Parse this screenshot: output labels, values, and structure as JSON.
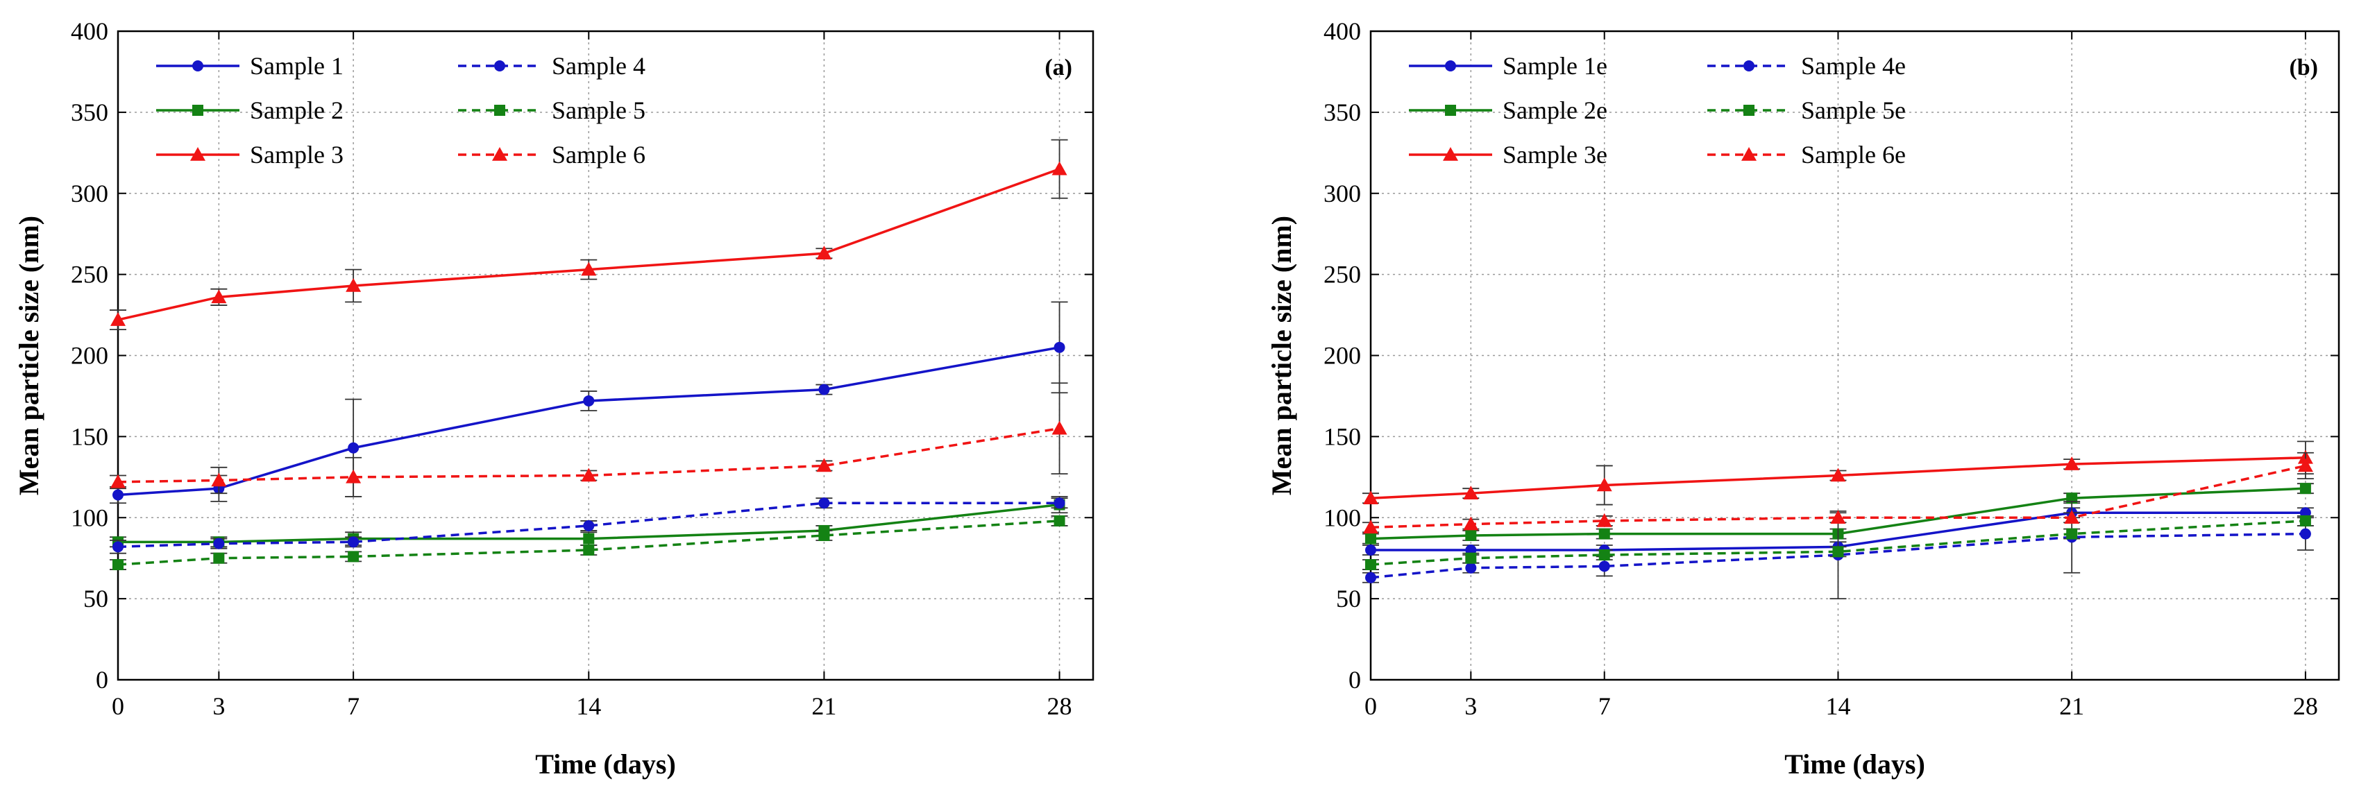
{
  "chart_data": [
    {
      "type": "line",
      "panel_label": "(a)",
      "xlabel": "Time (days)",
      "ylabel": "Mean particle size (nm)",
      "xlim": [
        0,
        29
      ],
      "ylim": [
        0,
        400
      ],
      "x_ticks": [
        0,
        3,
        7,
        14,
        21,
        28
      ],
      "y_ticks": [
        0,
        50,
        100,
        150,
        200,
        250,
        300,
        350,
        400
      ],
      "grid": true,
      "legend_position": "top-left",
      "x": [
        0,
        3,
        7,
        14,
        21,
        28
      ],
      "series": [
        {
          "name": "Sample 1",
          "color": "#1414c8",
          "marker": "circle",
          "dash": "solid",
          "values": [
            114,
            118,
            143,
            172,
            179,
            205
          ],
          "errors": [
            5,
            8,
            30,
            6,
            3,
            28
          ]
        },
        {
          "name": "Sample 2",
          "color": "#148214",
          "marker": "square",
          "dash": "solid",
          "values": [
            85,
            85,
            87,
            87,
            92,
            108
          ],
          "errors": [
            3,
            3,
            4,
            4,
            3,
            5
          ]
        },
        {
          "name": "Sample 3",
          "color": "#f01414",
          "marker": "triangle",
          "dash": "solid",
          "values": [
            222,
            236,
            243,
            253,
            263,
            315
          ],
          "errors": [
            6,
            5,
            10,
            6,
            3,
            18
          ]
        },
        {
          "name": "Sample 4",
          "color": "#1414c8",
          "marker": "circle",
          "dash": "dashed",
          "values": [
            82,
            84,
            85,
            95,
            109,
            109
          ],
          "errors": [
            4,
            3,
            3,
            3,
            3,
            3
          ]
        },
        {
          "name": "Sample 5",
          "color": "#148214",
          "marker": "square",
          "dash": "dashed",
          "values": [
            71,
            75,
            76,
            80,
            89,
            98
          ],
          "errors": [
            3,
            3,
            3,
            3,
            3,
            3
          ]
        },
        {
          "name": "Sample 6",
          "color": "#f01414",
          "marker": "triangle",
          "dash": "dashed",
          "values": [
            122,
            123,
            125,
            126,
            132,
            155
          ],
          "errors": [
            4,
            8,
            12,
            3,
            3,
            28
          ]
        }
      ]
    },
    {
      "type": "line",
      "panel_label": "(b)",
      "xlabel": "Time (days)",
      "ylabel": "Mean particle size (nm)",
      "xlim": [
        0,
        29
      ],
      "ylim": [
        0,
        400
      ],
      "x_ticks": [
        0,
        3,
        7,
        14,
        21,
        28
      ],
      "y_ticks": [
        0,
        50,
        100,
        150,
        200,
        250,
        300,
        350,
        400
      ],
      "grid": true,
      "legend_position": "top-left",
      "x": [
        0,
        3,
        7,
        14,
        21,
        28
      ],
      "series": [
        {
          "name": "Sample 1e",
          "color": "#1414c8",
          "marker": "circle",
          "dash": "solid",
          "values": [
            80,
            80,
            80,
            82,
            103,
            103
          ],
          "errors": [
            3,
            3,
            3,
            3,
            3,
            3
          ]
        },
        {
          "name": "Sample 2e",
          "color": "#148214",
          "marker": "square",
          "dash": "solid",
          "values": [
            87,
            89,
            90,
            90,
            112,
            118
          ],
          "errors": [
            3,
            3,
            3,
            3,
            3,
            3
          ]
        },
        {
          "name": "Sample 3e",
          "color": "#f01414",
          "marker": "triangle",
          "dash": "solid",
          "values": [
            112,
            115,
            120,
            126,
            133,
            137
          ],
          "errors": [
            3,
            3,
            12,
            3,
            3,
            10
          ]
        },
        {
          "name": "Sample 4e",
          "color": "#1414c8",
          "marker": "circle",
          "dash": "dashed",
          "values": [
            63,
            69,
            70,
            77,
            88,
            90
          ],
          "errors": [
            3,
            3,
            6,
            27,
            22,
            10
          ]
        },
        {
          "name": "Sample 5e",
          "color": "#148214",
          "marker": "square",
          "dash": "dashed",
          "values": [
            71,
            75,
            77,
            79,
            90,
            98
          ],
          "errors": [
            3,
            3,
            3,
            3,
            3,
            3
          ]
        },
        {
          "name": "Sample 6e",
          "color": "#f01414",
          "marker": "triangle",
          "dash": "dashed",
          "values": [
            94,
            96,
            98,
            100,
            100,
            132
          ],
          "errors": [
            3,
            3,
            3,
            3,
            3,
            8
          ]
        }
      ]
    }
  ]
}
